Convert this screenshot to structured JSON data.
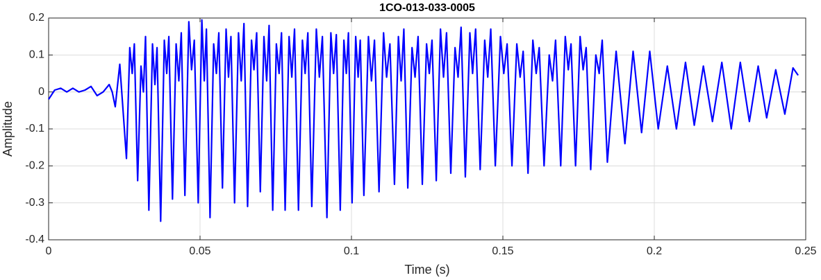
{
  "chart_data": {
    "type": "line",
    "title": "1CO-013-033-0005",
    "xlabel": "Time (s)",
    "ylabel": "Amplitude",
    "xlim": [
      0,
      0.25
    ],
    "ylim": [
      -0.4,
      0.2
    ],
    "xticks": [
      0,
      0.05,
      0.1,
      0.15,
      0.2,
      0.25
    ],
    "yticks": [
      -0.4,
      -0.3,
      -0.2,
      -0.1,
      0,
      0.1,
      0.2
    ],
    "grid": true,
    "series": [
      {
        "color": "#0000ff",
        "x": [
          0,
          0.002,
          0.004,
          0.006,
          0.008,
          0.01,
          0.012,
          0.014,
          0.016,
          0.018,
          0.02,
          0.021,
          0.022,
          0.0235,
          0.0257,
          0.0268,
          0.0276,
          0.0283,
          0.0294,
          0.0305,
          0.0313,
          0.032,
          0.0331,
          0.0343,
          0.0351,
          0.0358,
          0.037,
          0.0382,
          0.039,
          0.0397,
          0.0409,
          0.0421,
          0.043,
          0.0438,
          0.045,
          0.0463,
          0.0472,
          0.0481,
          0.0494,
          0.0506,
          0.0514,
          0.0521,
          0.0533,
          0.0545,
          0.0554,
          0.0562,
          0.0574,
          0.0586,
          0.0594,
          0.0602,
          0.0614,
          0.0627,
          0.0636,
          0.0645,
          0.0657,
          0.067,
          0.0678,
          0.0687,
          0.0699,
          0.0711,
          0.072,
          0.0728,
          0.074,
          0.0752,
          0.0761,
          0.0769,
          0.0781,
          0.0794,
          0.0803,
          0.0812,
          0.0825,
          0.0838,
          0.0847,
          0.0856,
          0.0869,
          0.0884,
          0.0894,
          0.0904,
          0.0919,
          0.0932,
          0.0941,
          0.095,
          0.0963,
          0.0975,
          0.0983,
          0.099,
          0.1002,
          0.1014,
          0.1022,
          0.1029,
          0.1041,
          0.1056,
          0.1066,
          0.1076,
          0.1091,
          0.1106,
          0.1116,
          0.1127,
          0.1142,
          0.1155,
          0.1164,
          0.1173,
          0.1186,
          0.12,
          0.121,
          0.122,
          0.1234,
          0.1248,
          0.1257,
          0.1266,
          0.128,
          0.1294,
          0.1304,
          0.1314,
          0.1328,
          0.1342,
          0.1352,
          0.1362,
          0.1376,
          0.1391,
          0.14,
          0.141,
          0.1425,
          0.144,
          0.145,
          0.146,
          0.1475,
          0.1492,
          0.1503,
          0.1514,
          0.153,
          0.1546,
          0.1557,
          0.1567,
          0.1583,
          0.1599,
          0.161,
          0.162,
          0.1636,
          0.1653,
          0.1664,
          0.1674,
          0.1691,
          0.1706,
          0.1716,
          0.1725,
          0.174,
          0.1755,
          0.1765,
          0.1775,
          0.179,
          0.1807,
          0.1818,
          0.1828,
          0.1845,
          0.1874,
          0.1903,
          0.193,
          0.1958,
          0.1985,
          0.2013,
          0.2043,
          0.2073,
          0.2103,
          0.2132,
          0.2162,
          0.2192,
          0.2223,
          0.2254,
          0.2284,
          0.2314,
          0.2343,
          0.2371,
          0.2401,
          0.2431,
          0.2458,
          0.2475
        ],
        "values": [
          -0.02,
          0.005,
          0.01,
          0.0,
          0.01,
          0.0,
          0.005,
          0.015,
          -0.01,
          0.0,
          0.02,
          0.0,
          -0.04,
          0.075,
          -0.18,
          0.12,
          0.05,
          0.13,
          -0.24,
          0.07,
          0.0,
          0.15,
          -0.32,
          0.13,
          0.02,
          0.12,
          -0.35,
          0.14,
          0.05,
          0.15,
          -0.29,
          0.13,
          0.03,
          0.16,
          -0.28,
          0.19,
          0.06,
          0.14,
          -0.3,
          0.195,
          0.03,
          0.17,
          -0.34,
          0.13,
          0.05,
          0.16,
          -0.26,
          0.17,
          0.04,
          0.15,
          -0.3,
          0.16,
          0.03,
          0.185,
          -0.31,
          0.14,
          0.06,
          0.16,
          -0.27,
          0.15,
          0.03,
          0.18,
          -0.32,
          0.13,
          0.05,
          0.16,
          -0.32,
          0.15,
          0.04,
          0.17,
          -0.32,
          0.14,
          0.05,
          0.16,
          -0.31,
          0.17,
          0.04,
          0.15,
          -0.34,
          0.16,
          0.05,
          0.155,
          -0.32,
          0.14,
          0.05,
          0.16,
          -0.3,
          0.15,
          0.04,
          0.14,
          -0.28,
          0.15,
          0.03,
          0.14,
          -0.27,
          0.16,
          0.04,
          0.13,
          -0.25,
          0.15,
          0.03,
          0.17,
          -0.26,
          0.12,
          0.04,
          0.15,
          -0.25,
          0.13,
          0.05,
          0.14,
          -0.24,
          0.17,
          0.04,
          0.16,
          -0.22,
          0.12,
          0.04,
          0.175,
          -0.23,
          0.16,
          0.05,
          0.17,
          -0.21,
          0.14,
          0.04,
          0.17,
          -0.2,
          0.15,
          0.05,
          0.13,
          -0.2,
          0.13,
          0.04,
          0.11,
          -0.22,
          0.14,
          0.05,
          0.12,
          -0.2,
          0.1,
          0.03,
          0.14,
          -0.2,
          0.15,
          0.06,
          0.13,
          -0.2,
          0.15,
          0.06,
          0.12,
          -0.21,
          0.1,
          0.05,
          0.14,
          -0.19,
          0.11,
          -0.14,
          0.11,
          -0.11,
          0.11,
          -0.1,
          0.07,
          -0.1,
          0.08,
          -0.09,
          0.07,
          -0.08,
          0.08,
          -0.1,
          0.08,
          -0.08,
          0.07,
          -0.07,
          0.06,
          -0.06,
          0.065,
          0.045
        ]
      }
    ]
  }
}
